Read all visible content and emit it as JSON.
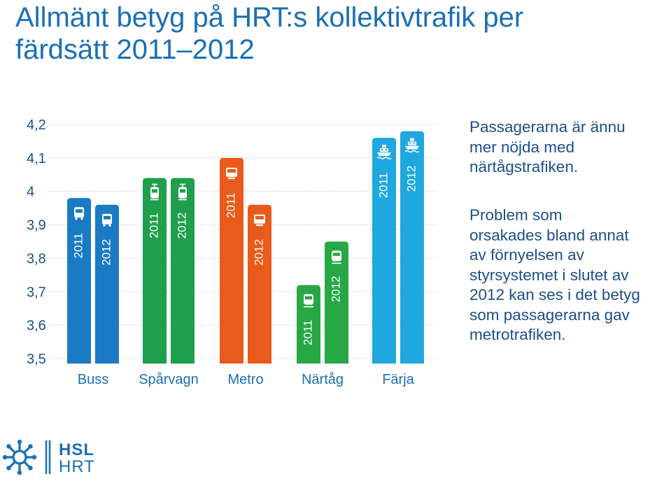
{
  "title": {
    "line1": "Allmänt betyg på HRT:s kollektivtrafik per",
    "line2": "färdsätt 2011–2012"
  },
  "notes": {
    "note1": [
      "Passagerarna är ännu",
      "mer nöjda med",
      "närtågstrafiken."
    ],
    "note2": [
      "Problem som",
      "orsakades bland annat",
      "av förnyelsen av",
      "styrsystemet i slutet av",
      "2012 kan ses i det betyg",
      "som passagerarna gav",
      "metrotrafiken."
    ]
  },
  "logo": {
    "line1": "HSL",
    "line2": "HRT"
  },
  "chart_data": {
    "type": "bar",
    "ylim": [
      3.5,
      4.2
    ],
    "yticks": [
      "4,2",
      "4,1",
      "4",
      "3,9",
      "3,8",
      "3,7",
      "3,6",
      "3,5"
    ],
    "ytick_values": [
      4.2,
      4.1,
      4.0,
      3.9,
      3.8,
      3.7,
      3.6,
      3.5
    ],
    "grid": true,
    "categories": [
      {
        "label": "Buss",
        "color": "#1a7bc4",
        "icon": "bus-icon",
        "bars": [
          {
            "year": "2011",
            "value": 3.98
          },
          {
            "year": "2012",
            "value": 3.96
          }
        ]
      },
      {
        "label": "Spårvagn",
        "color": "#1f9e4c",
        "icon": "tram-icon",
        "bars": [
          {
            "year": "2011",
            "value": 4.04
          },
          {
            "year": "2012",
            "value": 4.04
          }
        ]
      },
      {
        "label": "Metro",
        "color": "#ea5a1a",
        "icon": "metro-icon",
        "bars": [
          {
            "year": "2011",
            "value": 4.1
          },
          {
            "year": "2012",
            "value": 3.96
          }
        ]
      },
      {
        "label": "Närtåg",
        "color": "#27a844",
        "icon": "train-icon",
        "bars": [
          {
            "year": "2011",
            "value": 3.72
          },
          {
            "year": "2012",
            "value": 3.85
          }
        ]
      },
      {
        "label": "Färja",
        "color": "#1fa8e0",
        "icon": "ferry-icon",
        "bars": [
          {
            "year": "2011",
            "value": 4.16
          },
          {
            "year": "2012",
            "value": 4.18
          }
        ]
      }
    ]
  }
}
